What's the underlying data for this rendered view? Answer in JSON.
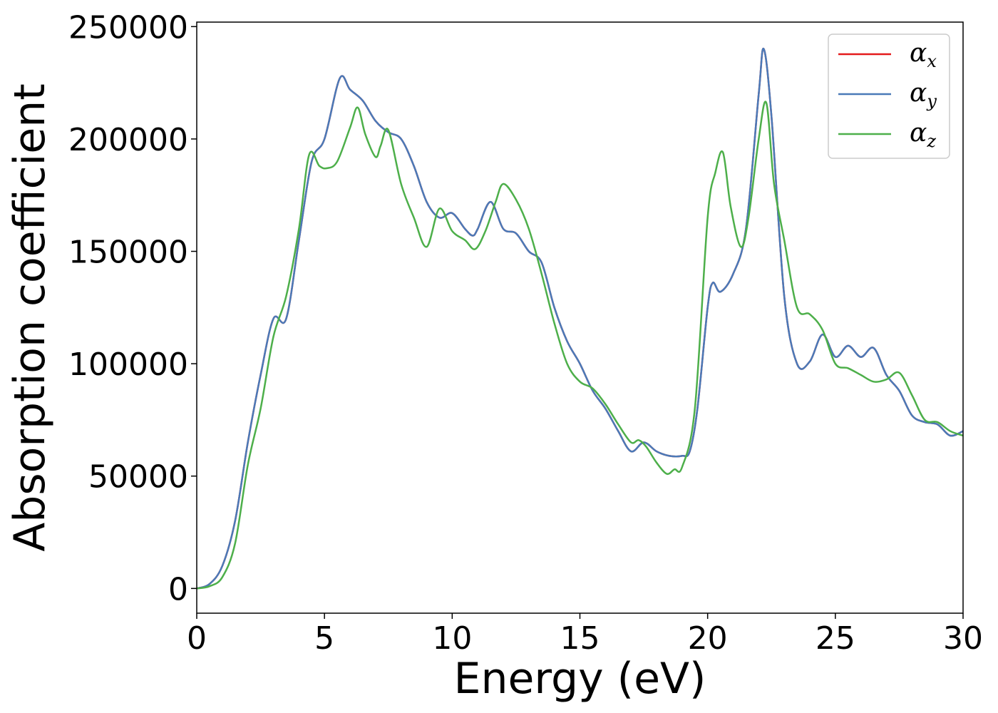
{
  "chart_data": {
    "type": "line",
    "title": "",
    "xlabel": "Energy (eV)",
    "ylabel": "Absorption coefficient",
    "xlim": [
      0,
      30
    ],
    "ylim": [
      -11000,
      252000
    ],
    "xticks": [
      0,
      5,
      10,
      15,
      20,
      25,
      30
    ],
    "yticks": [
      0,
      50000,
      100000,
      150000,
      200000,
      250000
    ],
    "xtick_labels": [
      "0",
      "5",
      "10",
      "15",
      "20",
      "25",
      "30"
    ],
    "ytick_labels": [
      "0",
      "50000",
      "100000",
      "150000",
      "200000",
      "250000"
    ],
    "grid": false,
    "legend_position": "top-right",
    "series": [
      {
        "name": "α",
        "subscript": "x",
        "color": "#e41a1c",
        "x": [
          0,
          0.5,
          1,
          1.5,
          2,
          2.5,
          3,
          3.5,
          4,
          4.5,
          5,
          5.6,
          6,
          6.5,
          7,
          7.5,
          8,
          8.5,
          9,
          9.5,
          10,
          10.5,
          10.8,
          11,
          11.5,
          12,
          12.5,
          13,
          13.5,
          14,
          14.5,
          15,
          15.5,
          16,
          16.5,
          17,
          17.5,
          18,
          18.5,
          19,
          19.3,
          19.6,
          20,
          20.2,
          20.5,
          21,
          21.5,
          22,
          22.2,
          22.5,
          23,
          23.5,
          24,
          24.5,
          25,
          25.5,
          26,
          26.5,
          27,
          27.5,
          28,
          28.5,
          29,
          29.5,
          30
        ],
        "y": [
          0,
          2000,
          10000,
          30000,
          65000,
          95000,
          120000,
          120000,
          155000,
          190000,
          200000,
          227000,
          222000,
          217000,
          208000,
          203000,
          200000,
          188000,
          172000,
          165000,
          167000,
          160000,
          157000,
          160000,
          172000,
          160000,
          158000,
          150000,
          145000,
          125000,
          110000,
          100000,
          88000,
          80000,
          70000,
          61000,
          65000,
          61000,
          59000,
          59000,
          61000,
          80000,
          125000,
          136000,
          132000,
          140000,
          160000,
          220000,
          240000,
          210000,
          130000,
          100000,
          101000,
          113000,
          103000,
          108000,
          103000,
          107000,
          95000,
          88000,
          77000,
          74000,
          73000,
          68000,
          70000
        ]
      },
      {
        "name": "α",
        "subscript": "y",
        "color": "#4a7ab8",
        "x": [
          0,
          0.5,
          1,
          1.5,
          2,
          2.5,
          3,
          3.5,
          4,
          4.5,
          5,
          5.6,
          6,
          6.5,
          7,
          7.5,
          8,
          8.5,
          9,
          9.5,
          10,
          10.5,
          10.8,
          11,
          11.5,
          12,
          12.5,
          13,
          13.5,
          14,
          14.5,
          15,
          15.5,
          16,
          16.5,
          17,
          17.5,
          18,
          18.5,
          19,
          19.3,
          19.6,
          20,
          20.2,
          20.5,
          21,
          21.5,
          22,
          22.2,
          22.5,
          23,
          23.5,
          24,
          24.5,
          25,
          25.5,
          26,
          26.5,
          27,
          27.5,
          28,
          28.5,
          29,
          29.5,
          30
        ],
        "y": [
          0,
          2000,
          10000,
          30000,
          65000,
          95000,
          120000,
          120000,
          155000,
          190000,
          200000,
          227000,
          222000,
          217000,
          208000,
          203000,
          200000,
          188000,
          172000,
          165000,
          167000,
          160000,
          157000,
          160000,
          172000,
          160000,
          158000,
          150000,
          145000,
          125000,
          110000,
          100000,
          88000,
          80000,
          70000,
          61000,
          65000,
          61000,
          59000,
          59000,
          61000,
          80000,
          125000,
          136000,
          132000,
          140000,
          160000,
          220000,
          240000,
          210000,
          130000,
          100000,
          101000,
          113000,
          103000,
          108000,
          103000,
          107000,
          95000,
          88000,
          77000,
          74000,
          73000,
          68000,
          70000
        ]
      },
      {
        "name": "α",
        "subscript": "z",
        "color": "#4daf4a",
        "x": [
          0,
          0.5,
          1,
          1.5,
          2,
          2.5,
          3,
          3.5,
          4,
          4.4,
          4.8,
          5.1,
          5.5,
          6,
          6.3,
          6.6,
          7,
          7.2,
          7.5,
          8,
          8.5,
          9,
          9.5,
          10,
          10.5,
          10.9,
          11.3,
          11.7,
          12,
          12.5,
          13,
          13.5,
          14,
          14.5,
          15,
          15.5,
          16,
          16.5,
          17,
          17.3,
          17.6,
          18,
          18.4,
          18.7,
          19,
          19.5,
          20,
          20.3,
          20.6,
          20.9,
          21.3,
          21.6,
          22,
          22.3,
          22.6,
          23,
          23.5,
          24,
          24.5,
          25,
          25.5,
          26,
          26.5,
          27,
          27.5,
          28,
          28.5,
          29,
          29.5,
          30
        ],
        "y": [
          0,
          1000,
          5000,
          20000,
          55000,
          80000,
          112000,
          130000,
          160000,
          193000,
          188000,
          187000,
          190000,
          205000,
          214000,
          202000,
          192000,
          197000,
          204000,
          180000,
          165000,
          152000,
          169000,
          159000,
          155000,
          151000,
          159000,
          172000,
          180000,
          173000,
          160000,
          140000,
          118000,
          100000,
          92000,
          89000,
          82000,
          73000,
          65000,
          66000,
          63000,
          56000,
          51000,
          53000,
          54000,
          80000,
          165000,
          185000,
          194000,
          170000,
          152000,
          165000,
          200000,
          216000,
          180000,
          155000,
          125000,
          122000,
          115000,
          100000,
          98000,
          95000,
          92000,
          93000,
          96000,
          86000,
          75000,
          74000,
          70000,
          68000
        ]
      }
    ]
  }
}
